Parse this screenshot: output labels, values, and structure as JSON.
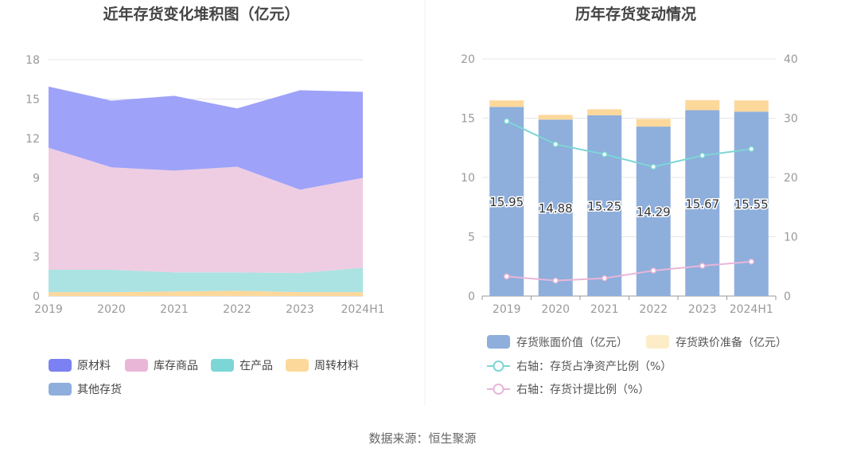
{
  "source_text": "数据来源：恒生聚源",
  "chart_data": [
    {
      "type": "area",
      "stacked": true,
      "title": "近年存货变化堆积图（亿元）",
      "x": [
        "2019",
        "2020",
        "2021",
        "2022",
        "2023",
        "2024H1"
      ],
      "ylim": [
        0,
        18
      ],
      "yticks": [
        "0",
        "3",
        "6",
        "9",
        "12",
        "15",
        "18"
      ],
      "grid": true,
      "legend_placement": "bottom",
      "series": [
        {
          "name": "周转材料",
          "color": "#fdd89b",
          "values": [
            0.3,
            0.3,
            0.35,
            0.4,
            0.3,
            0.3
          ]
        },
        {
          "name": "在产品",
          "color": "#aae3e2",
          "values": [
            1.7,
            1.7,
            1.45,
            1.4,
            1.45,
            1.85
          ]
        },
        {
          "name": "库存商品",
          "color": "#eecde3",
          "values": [
            9.3,
            7.8,
            7.75,
            8.05,
            6.35,
            6.85
          ]
        },
        {
          "name": "原材料",
          "color": "#9ea2f9",
          "values": [
            4.65,
            5.08,
            5.7,
            4.44,
            7.57,
            6.55
          ]
        },
        {
          "name": "其他存货",
          "color": "#8eaedc",
          "values": [
            0,
            0,
            0,
            0,
            0,
            0
          ]
        }
      ],
      "legend": [
        {
          "name": "原材料",
          "color": "#7b80f2"
        },
        {
          "name": "库存商品",
          "color": "#e9b6d8"
        },
        {
          "name": "在产品",
          "color": "#7dd6d6"
        },
        {
          "name": "周转材料",
          "color": "#fdd89b"
        },
        {
          "name": "其他存货",
          "color": "#8eaedc"
        }
      ]
    },
    {
      "type": "bar",
      "title": "历年存货变动情况",
      "categories": [
        "2019",
        "2020",
        "2021",
        "2022",
        "2023",
        "2024H1"
      ],
      "ylim": [
        0,
        20
      ],
      "yticks": [
        "0",
        "5",
        "10",
        "15",
        "20"
      ],
      "y2lim": [
        0,
        40
      ],
      "y2ticks": [
        "0",
        "10",
        "20",
        "30",
        "40"
      ],
      "grid": true,
      "legend_placement": "bottom",
      "bar_series": [
        {
          "name": "存货账面价值（亿元）",
          "color": "#8eaedc",
          "values": [
            15.95,
            14.88,
            15.25,
            14.29,
            15.67,
            15.55
          ],
          "labels": [
            "15.95",
            "14.88",
            "15.25",
            "14.29",
            "15.67",
            "15.55"
          ]
        },
        {
          "name": "存货跌价准备（亿元）",
          "color": "#fdd89b",
          "values": [
            0.55,
            0.4,
            0.5,
            0.65,
            0.85,
            0.95
          ]
        }
      ],
      "line_series": [
        {
          "name": "右轴：存货占净资产比例（%）",
          "color": "#7dd6d6",
          "axis": "right",
          "values": [
            29.5,
            25.6,
            23.9,
            21.8,
            23.7,
            24.8
          ]
        },
        {
          "name": "右轴：存货计提比例（%）",
          "color": "#e9b6d8",
          "axis": "right",
          "values": [
            3.3,
            2.6,
            3.0,
            4.3,
            5.1,
            5.8
          ]
        }
      ]
    }
  ]
}
